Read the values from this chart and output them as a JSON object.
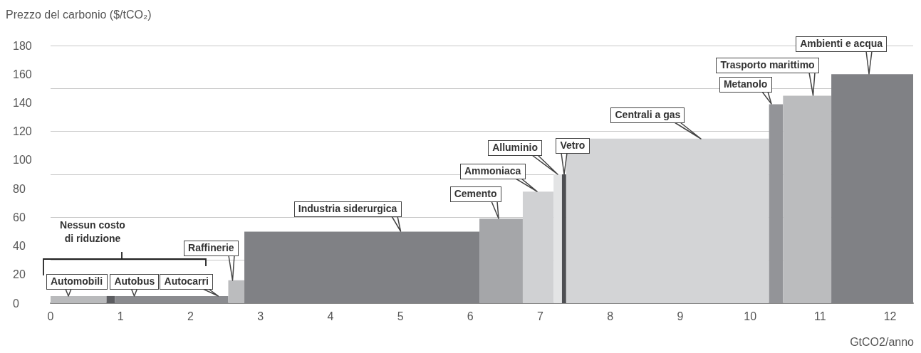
{
  "chart_data": {
    "type": "histogram",
    "ylabel": "Prezzo del carbonio ($/tCO₂)",
    "xlabel": "GtCO2/anno",
    "bins": [
      0,
      0.8,
      0.92,
      2.54,
      2.77,
      6.13,
      6.75,
      7.19,
      7.31,
      7.37,
      10.27,
      10.47,
      11.16,
      12.33
    ],
    "values": [
      5,
      5,
      5,
      16,
      50,
      59,
      78,
      90,
      90,
      115,
      139,
      145,
      160
    ],
    "colors": [
      "#b9babc",
      "#5c5d61",
      "#8a8b8f",
      "#bbbcbe",
      "#808185",
      "#a5a6a9",
      "#d0d1d3",
      "#e3e4e5",
      "#4d4e52",
      "#d3d4d6",
      "#939498",
      "#bbbcbe",
      "#808185"
    ],
    "xlim": [
      0,
      12.33
    ],
    "xticks": [
      0,
      1,
      2,
      3,
      4,
      5,
      6,
      7,
      8,
      9,
      10,
      11,
      12
    ],
    "ylim": [
      0,
      180
    ],
    "yticks": [
      0,
      20,
      40,
      60,
      80,
      100,
      120,
      140,
      160,
      180
    ],
    "grid": "y",
    "annotations": [
      {
        "text": "Automobili",
        "x": 0.25,
        "y": 5
      },
      {
        "text": "Autobus",
        "x": 1.2,
        "y": 5
      },
      {
        "text": "Autocarri",
        "x": 2.4,
        "y": 5
      },
      {
        "text": "Raffinerie",
        "x": 2.6,
        "y": 16
      },
      {
        "text": "Industria siderurgica",
        "x": 5.0,
        "y": 50
      },
      {
        "text": "Cemento",
        "x": 6.4,
        "y": 59
      },
      {
        "text": "Ammoniaca",
        "x": 6.95,
        "y": 78
      },
      {
        "text": "Alluminio",
        "x": 7.25,
        "y": 90
      },
      {
        "text": "Vetro",
        "x": 7.34,
        "y": 90
      },
      {
        "text": "Centrali a gas",
        "x": 9.3,
        "y": 115
      },
      {
        "text": "Metanolo",
        "x": 10.3,
        "y": 139
      },
      {
        "text": "Trasporto marittimo",
        "x": 10.9,
        "y": 145
      },
      {
        "text": "Ambienti e acqua",
        "x": 11.7,
        "y": 160
      },
      "Nessun costo\ndi riduzione"
    ]
  }
}
